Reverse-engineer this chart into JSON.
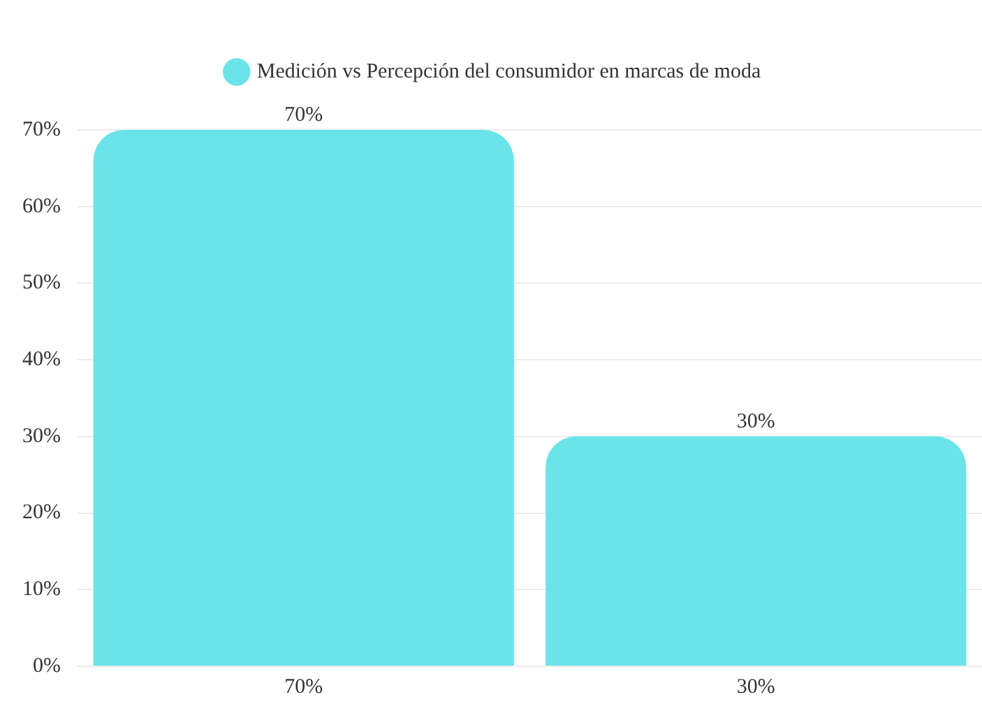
{
  "chart_data": {
    "type": "bar",
    "categories": [
      "70%",
      "30%"
    ],
    "series": [
      {
        "name": "Medición vs Percepción del consumidor en marcas de moda",
        "color": "#6ae4e8",
        "values": [
          70,
          30
        ],
        "value_labels": [
          "70%",
          "30%"
        ]
      }
    ],
    "ylim": [
      0,
      70
    ],
    "yticks": [
      {
        "value": 0,
        "label": "0%"
      },
      {
        "value": 10,
        "label": "10%"
      },
      {
        "value": 20,
        "label": "20%"
      },
      {
        "value": 30,
        "label": "30%"
      },
      {
        "value": 40,
        "label": "40%"
      },
      {
        "value": 50,
        "label": "50%"
      },
      {
        "value": 60,
        "label": "60%"
      },
      {
        "value": 70,
        "label": "70%"
      }
    ],
    "grid": "y",
    "legend": "top"
  }
}
